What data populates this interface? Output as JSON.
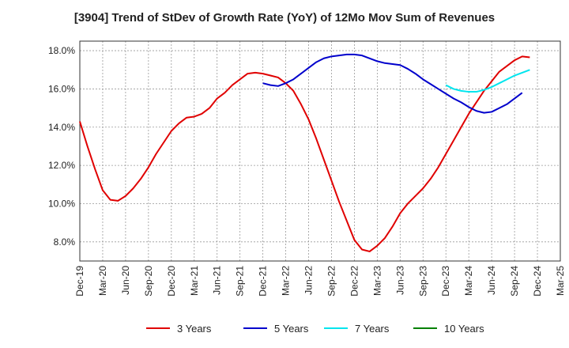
{
  "chart_data": {
    "type": "line",
    "title": "[3904]  Trend of StDev of Growth Rate (YoY) of 12Mo Mov Sum of Revenues",
    "xlabel": "",
    "ylabel": "",
    "x_start": "2019-12",
    "x_ticks": [
      "Dec-19",
      "Mar-20",
      "Jun-20",
      "Sep-20",
      "Dec-20",
      "Mar-21",
      "Jun-21",
      "Sep-21",
      "Dec-21",
      "Mar-22",
      "Jun-22",
      "Sep-22",
      "Dec-22",
      "Mar-23",
      "Jun-23",
      "Sep-23",
      "Dec-23",
      "Mar-24",
      "Jun-24",
      "Sep-24",
      "Dec-24",
      "Mar-25"
    ],
    "ylim": [
      7.0,
      18.5
    ],
    "y_ticks": [
      8.0,
      10.0,
      12.0,
      14.0,
      16.0,
      18.0
    ],
    "y_tick_labels": [
      "8.0%",
      "10.0%",
      "12.0%",
      "14.0%",
      "16.0%",
      "18.0%"
    ],
    "grid": "dotted",
    "legend_position": "bottom",
    "series": [
      {
        "name": "3 Years",
        "color": "#e00000",
        "start_index": 0,
        "values": [
          14.3,
          13.0,
          11.8,
          10.7,
          10.2,
          10.15,
          10.4,
          10.8,
          11.3,
          11.9,
          12.6,
          13.2,
          13.8,
          14.2,
          14.5,
          14.55,
          14.7,
          15.0,
          15.5,
          15.8,
          16.2,
          16.5,
          16.8,
          16.85,
          16.8,
          16.7,
          16.6,
          16.3,
          15.9,
          15.2,
          14.4,
          13.4,
          12.3,
          11.2,
          10.1,
          9.1,
          8.1,
          7.6,
          7.5,
          7.8,
          8.2,
          8.8,
          9.5,
          10.0,
          10.4,
          10.8,
          11.3,
          11.9,
          12.6,
          13.3,
          14.0,
          14.7,
          15.3,
          15.9,
          16.4,
          16.9,
          17.2,
          17.5,
          17.7,
          17.65
        ]
      },
      {
        "name": "5 Years",
        "color": "#0000cc",
        "start_index": 24,
        "values": [
          16.3,
          16.2,
          16.15,
          16.3,
          16.5,
          16.8,
          17.1,
          17.4,
          17.6,
          17.7,
          17.75,
          17.8,
          17.8,
          17.75,
          17.6,
          17.45,
          17.35,
          17.3,
          17.25,
          17.05,
          16.8,
          16.5,
          16.25,
          16.0,
          15.75,
          15.5,
          15.3,
          15.05,
          14.85,
          14.75,
          14.8,
          15.0,
          15.2,
          15.5,
          15.8
        ]
      },
      {
        "name": "7 Years",
        "color": "#00e5ee",
        "start_index": 48,
        "values": [
          16.2,
          16.0,
          15.9,
          15.85,
          15.85,
          15.95,
          16.1,
          16.3,
          16.5,
          16.7,
          16.85,
          17.0
        ]
      },
      {
        "name": "10 Years",
        "color": "#008000",
        "start_index": 60,
        "values": []
      }
    ]
  }
}
